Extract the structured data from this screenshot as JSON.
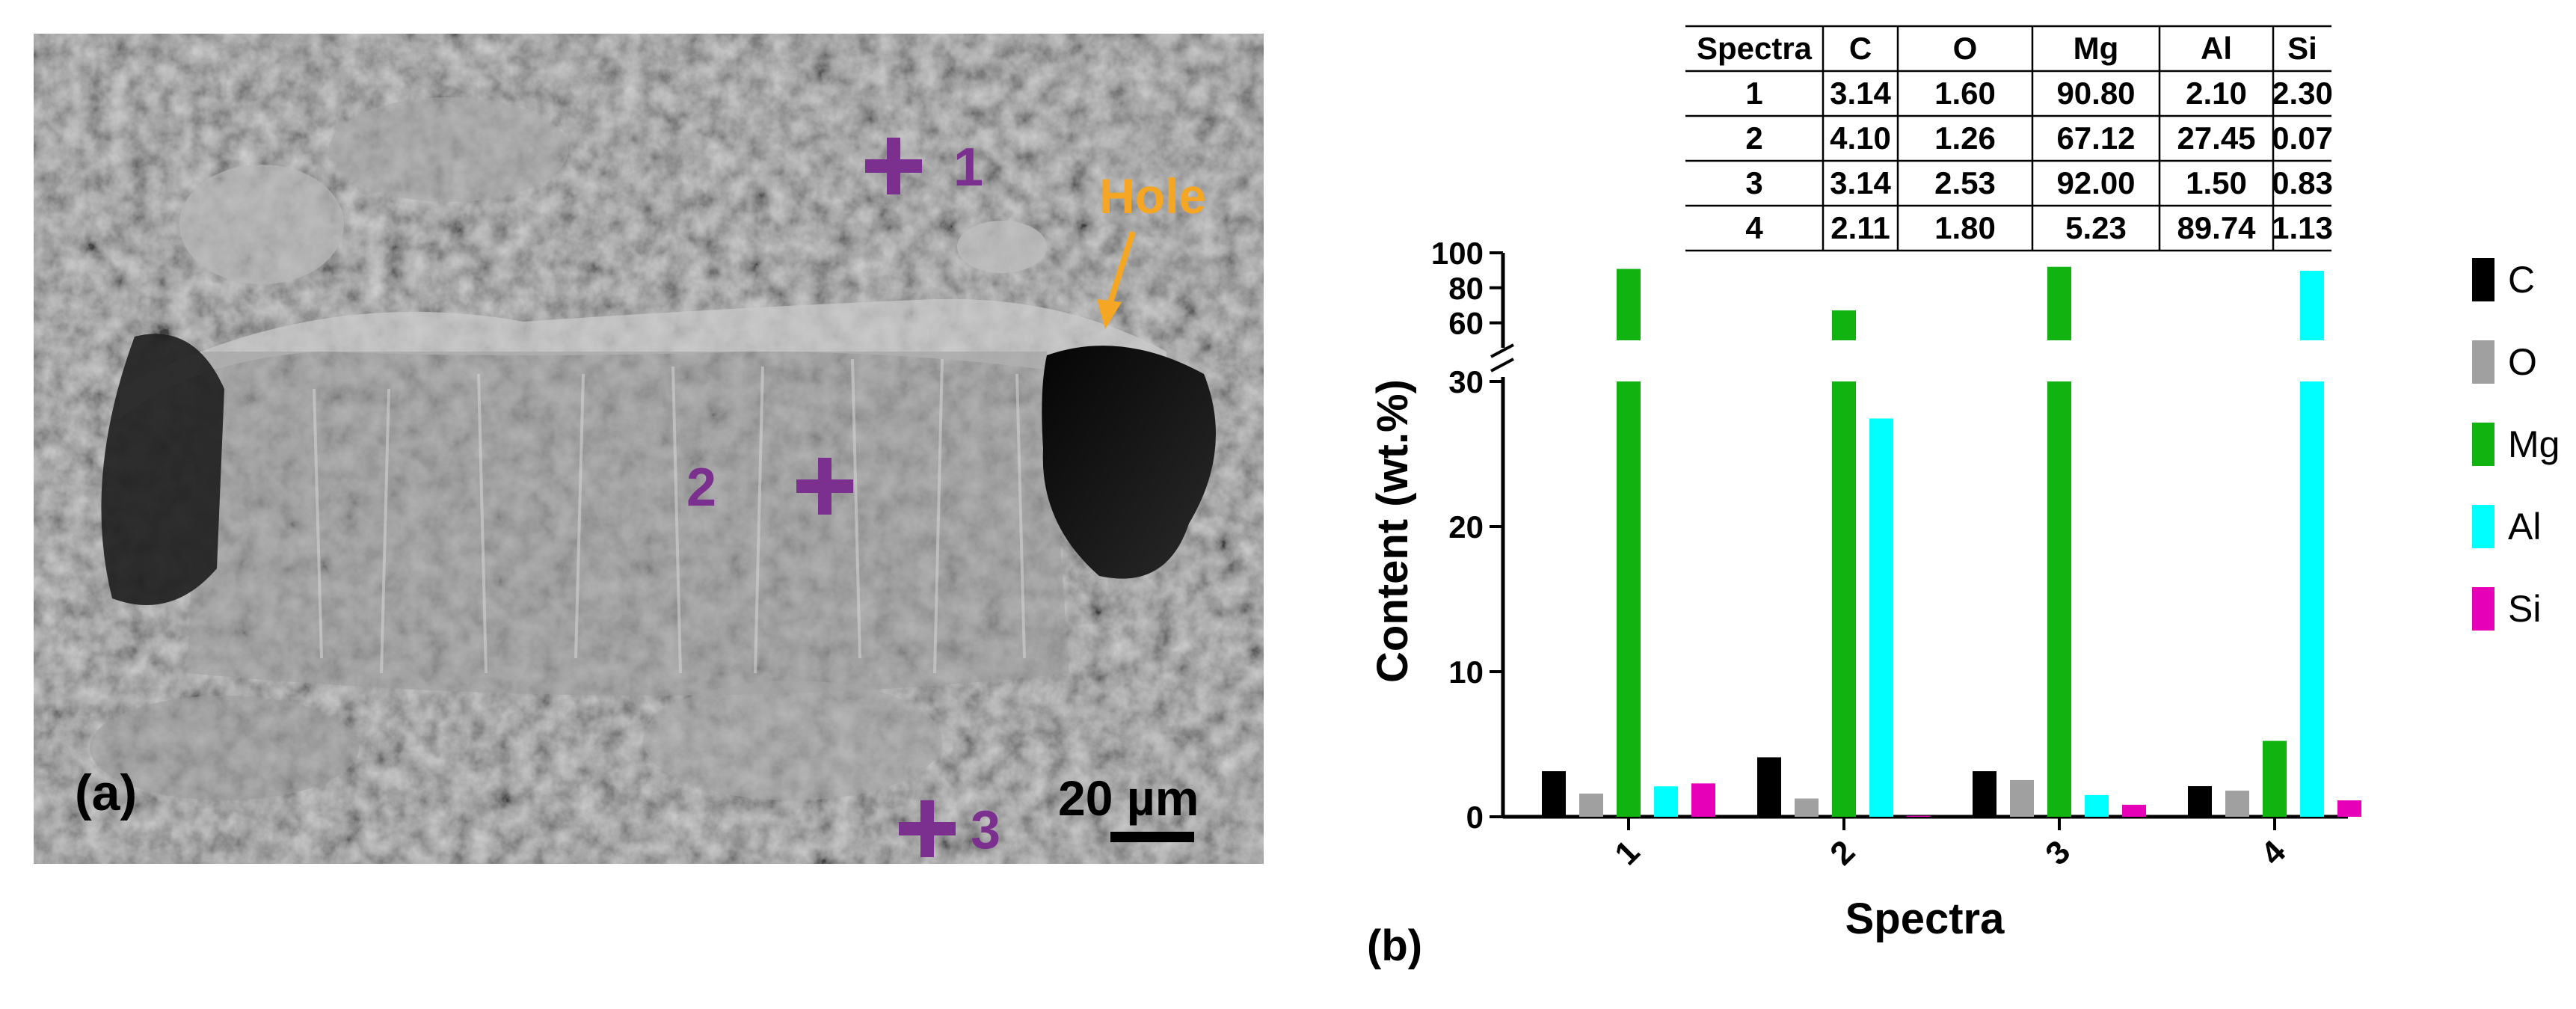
{
  "panel_a": {
    "label": "(a)",
    "hole_label": "Hole",
    "scale_bar": "20 µm",
    "markers": [
      {
        "num": "1"
      },
      {
        "num": "2"
      },
      {
        "num": "3"
      }
    ],
    "colors": {
      "marker": "#7b2f8e",
      "hole": "#f5a623",
      "background": "#8d8d8d"
    }
  },
  "panel_b": {
    "label": "(b)",
    "table": {
      "headers": [
        "Spectra",
        "C",
        "O",
        "Mg",
        "Al",
        "Si"
      ],
      "rows": [
        [
          "1",
          "3.14",
          "1.60",
          "90.80",
          "2.10",
          "2.30"
        ],
        [
          "2",
          "4.10",
          "1.26",
          "67.12",
          "27.45",
          "0.07"
        ],
        [
          "3",
          "3.14",
          "2.53",
          "92.00",
          "1.50",
          "0.83"
        ],
        [
          "4",
          "2.11",
          "1.80",
          "5.23",
          "89.74",
          "1.13"
        ]
      ]
    }
  },
  "chart_data": {
    "type": "bar",
    "title": "",
    "xlabel": "Spectra",
    "ylabel": "Content (wt.%)",
    "categories": [
      "1",
      "2",
      "3",
      "4"
    ],
    "series": [
      {
        "name": "C",
        "color": "#000000",
        "values": [
          3.14,
          4.1,
          3.14,
          2.11
        ]
      },
      {
        "name": "O",
        "color": "#a0a0a0",
        "values": [
          1.6,
          1.26,
          2.53,
          1.8
        ]
      },
      {
        "name": "Mg",
        "color": "#11b311",
        "values": [
          90.8,
          67.12,
          92.0,
          5.23
        ]
      },
      {
        "name": "Al",
        "color": "#00ffff",
        "values": [
          2.1,
          27.45,
          1.5,
          89.74
        ]
      },
      {
        "name": "Si",
        "color": "#e600b8",
        "values": [
          2.3,
          0.07,
          0.83,
          1.13
        ]
      }
    ],
    "y_axis_break": {
      "lower": [
        0,
        30
      ],
      "upper": [
        50,
        100
      ]
    },
    "yticks_lower": [
      "0",
      "10",
      "20",
      "30"
    ],
    "yticks_upper": [
      "60",
      "80",
      "100"
    ],
    "legend_position": "right"
  }
}
